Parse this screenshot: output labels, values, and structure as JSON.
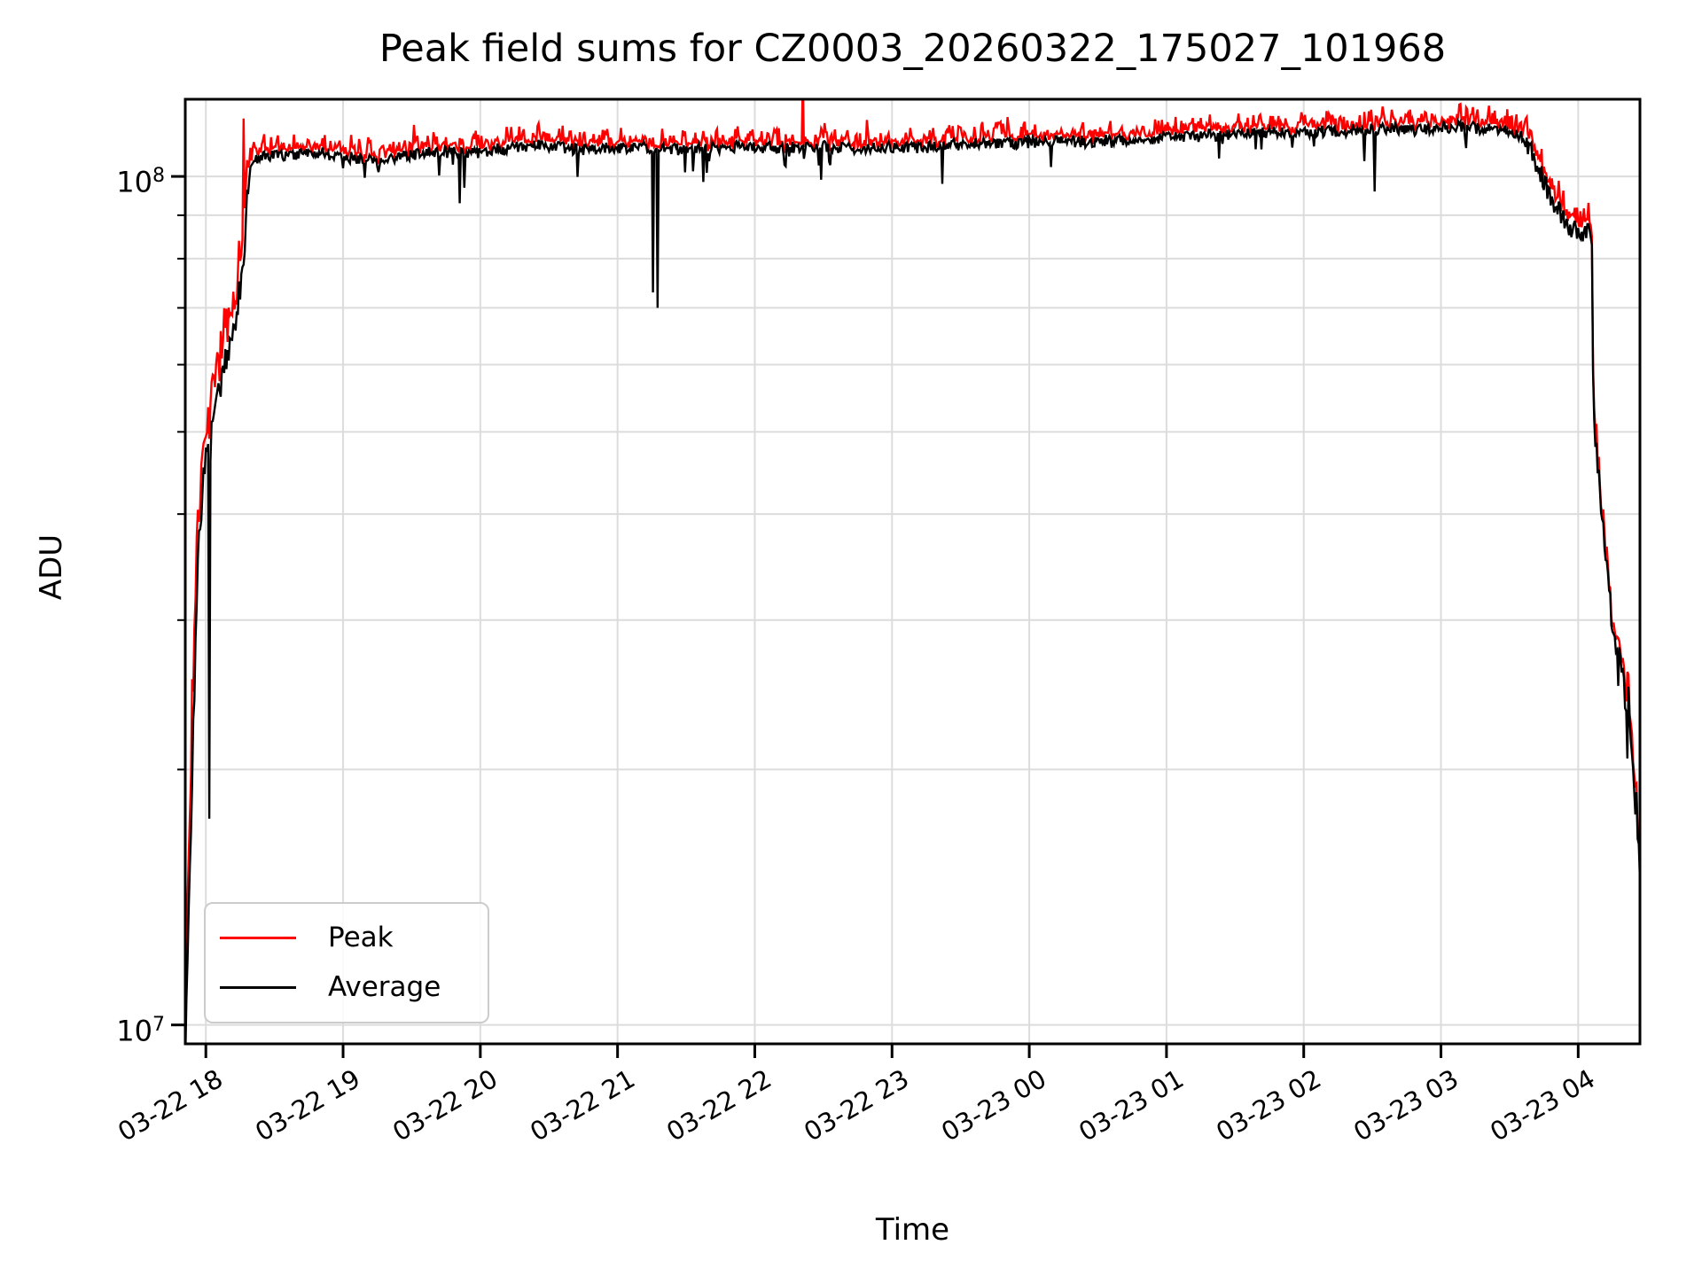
{
  "chart_data": {
    "type": "line",
    "title": "Peak field sums for CZ0003_20260322_175027_101968",
    "xlabel": "Time",
    "ylabel": "ADU",
    "yscale": "log",
    "ylim": [
      9500000.0,
      123300000.0
    ],
    "grid": true,
    "x_total_minutes": 636,
    "x_start_time": "03-22 17:51",
    "x_ticks": [
      {
        "minute": 9,
        "label": "03-22 18"
      },
      {
        "minute": 69,
        "label": "03-22 19"
      },
      {
        "minute": 129,
        "label": "03-22 20"
      },
      {
        "minute": 189,
        "label": "03-22 21"
      },
      {
        "minute": 249,
        "label": "03-22 22"
      },
      {
        "minute": 309,
        "label": "03-22 23"
      },
      {
        "minute": 369,
        "label": "03-23 00"
      },
      {
        "minute": 429,
        "label": "03-23 01"
      },
      {
        "minute": 489,
        "label": "03-23 02"
      },
      {
        "minute": 549,
        "label": "03-23 03"
      },
      {
        "minute": 609,
        "label": "03-23 04"
      }
    ],
    "y_major_ticks": [
      {
        "value": 10000000.0,
        "base": "10",
        "exp": "7"
      },
      {
        "value": 100000000.0,
        "base": "10",
        "exp": "8"
      }
    ],
    "y_minor_tick_values": [
      20000000.0,
      30000000.0,
      40000000.0,
      50000000.0,
      60000000.0,
      70000000.0,
      80000000.0,
      90000000.0
    ],
    "legend": {
      "position": "lower left",
      "entries": [
        {
          "label": "Peak",
          "color": "#ff0000"
        },
        {
          "label": "Average",
          "color": "#000000"
        }
      ]
    },
    "colors": {
      "peak": "#ff0000",
      "average": "#000000",
      "grid": "#dcdcdc",
      "frame": "#000000",
      "background": "#ffffff"
    },
    "series_names": [
      "Peak",
      "Average"
    ],
    "average_keypoints": [
      [
        0,
        9500000.0
      ],
      [
        0.5,
        10500000.0
      ],
      [
        1,
        12000000.0
      ],
      [
        2,
        15000000.0
      ],
      [
        3,
        19500000.0
      ],
      [
        4,
        25000000.0
      ],
      [
        5,
        31000000.0
      ],
      [
        6,
        37000000.0
      ],
      [
        7,
        41000000.0
      ],
      [
        8,
        44500000.0
      ],
      [
        9,
        46000000.0
      ],
      [
        10,
        47500000.0
      ],
      [
        11,
        48000000.0
      ],
      [
        12,
        51000000.0
      ],
      [
        13,
        53500000.0
      ],
      [
        14,
        55500000.0
      ],
      [
        15,
        57000000.0
      ],
      [
        16,
        58500000.0
      ],
      [
        17,
        60000000.0
      ],
      [
        18,
        61500000.0
      ],
      [
        19,
        62500000.0
      ],
      [
        20,
        63500000.0
      ],
      [
        21,
        65000000.0
      ],
      [
        22,
        68000000.0
      ],
      [
        23,
        71000000.0
      ],
      [
        24,
        74000000.0
      ],
      [
        25,
        76000000.0
      ],
      [
        26,
        81000000.0
      ],
      [
        27,
        93000000.0
      ],
      [
        28,
        100000000.0
      ],
      [
        29,
        103000000.0
      ],
      [
        30,
        104000000.0
      ],
      [
        32,
        105000000.0
      ],
      [
        35,
        105500000.0
      ],
      [
        45,
        106000000.0
      ],
      [
        60,
        106500000.0
      ],
      [
        75,
        105000000.0
      ],
      [
        85,
        104000000.0
      ],
      [
        95,
        105500000.0
      ],
      [
        110,
        107000000.0
      ],
      [
        125,
        106500000.0
      ],
      [
        140,
        108000000.0
      ],
      [
        155,
        109000000.0
      ],
      [
        170,
        107500000.0
      ],
      [
        185,
        108000000.0
      ],
      [
        200,
        108500000.0
      ],
      [
        215,
        107500000.0
      ],
      [
        230,
        108000000.0
      ],
      [
        245,
        108500000.0
      ],
      [
        260,
        108000000.0
      ],
      [
        275,
        108500000.0
      ],
      [
        290,
        108000000.0
      ],
      [
        305,
        108500000.0
      ],
      [
        320,
        108000000.0
      ],
      [
        335,
        109000000.0
      ],
      [
        350,
        109500000.0
      ],
      [
        365,
        109500000.0
      ],
      [
        380,
        110000000.0
      ],
      [
        395,
        110000000.0
      ],
      [
        410,
        110500000.0
      ],
      [
        425,
        111000000.0
      ],
      [
        440,
        111500000.0
      ],
      [
        455,
        112000000.0
      ],
      [
        470,
        112500000.0
      ],
      [
        485,
        113000000.0
      ],
      [
        500,
        113000000.0
      ],
      [
        515,
        113500000.0
      ],
      [
        530,
        114000000.0
      ],
      [
        545,
        114000000.0
      ],
      [
        555,
        114500000.0
      ],
      [
        565,
        114000000.0
      ],
      [
        572,
        113500000.0
      ],
      [
        578,
        113000000.0
      ],
      [
        583,
        112000000.0
      ],
      [
        587,
        109000000.0
      ],
      [
        590,
        105000000.0
      ],
      [
        593,
        100000000.0
      ],
      [
        596,
        96000000.0
      ],
      [
        599,
        93000000.0
      ],
      [
        601,
        91000000.0
      ],
      [
        603,
        89000000.0
      ],
      [
        605,
        87500000.0
      ],
      [
        607,
        86500000.0
      ],
      [
        609,
        86000000.0
      ],
      [
        612,
        86500000.0
      ],
      [
        614,
        86000000.0
      ],
      [
        615,
        85500000.0
      ],
      [
        615.5,
        60000000.0
      ],
      [
        616,
        51000000.0
      ],
      [
        617,
        47500000.0
      ],
      [
        618,
        44000000.0
      ],
      [
        619,
        41000000.0
      ],
      [
        620,
        38000000.0
      ],
      [
        621,
        35500000.0
      ],
      [
        622,
        33500000.0
      ],
      [
        623,
        31500000.0
      ],
      [
        624,
        29500000.0
      ],
      [
        625,
        28500000.0
      ],
      [
        626,
        27500000.0
      ],
      [
        626.5,
        25000000.0
      ],
      [
        627,
        28000000.0
      ],
      [
        627.5,
        27500000.0
      ],
      [
        628,
        26500000.0
      ],
      [
        629,
        25000000.0
      ],
      [
        630,
        23500000.0
      ],
      [
        630.5,
        21000000.0
      ],
      [
        631,
        24500000.0
      ],
      [
        631.5,
        23500000.0
      ],
      [
        632,
        22000000.0
      ],
      [
        633,
        19500000.0
      ],
      [
        634,
        18000000.0
      ],
      [
        634.5,
        19000000.0
      ],
      [
        635,
        17000000.0
      ],
      [
        635.5,
        16000000.0
      ],
      [
        636,
        15000000.0
      ]
    ],
    "events": {
      "average_dips": [
        [
          10.5,
          17500000.0
        ],
        [
          120,
          93000000.0
        ],
        [
          122,
          97000000.0
        ],
        [
          204.5,
          73000000.0
        ],
        [
          206.5,
          70000000.0
        ],
        [
          331,
          98000000.0
        ],
        [
          452,
          105000000.0
        ],
        [
          520,
          96000000.0
        ],
        [
          560,
          108000000.0
        ]
      ],
      "peak_spikes": [
        [
          25.3,
          117000000.0
        ],
        [
          100,
          115000000.0
        ],
        [
          270,
          131000000.0
        ],
        [
          503,
          117000000.0
        ],
        [
          578,
          120000000.0
        ],
        [
          580,
          118000000.0
        ]
      ]
    },
    "noise": {
      "seed": 7,
      "samples_per_minute": 2,
      "rise_end_min": 28,
      "tail_start_min": 585,
      "rise_avg_amp": 0.05,
      "plateau_avg_amp": 0.016,
      "tail_avg_amp": 0.03,
      "plateau_dip_chance": 0.055,
      "plateau_dip_amp": 0.08,
      "rise_peak_base": 0.02,
      "rise_peak_amp": 0.1,
      "plateau_peak_base": 0.006,
      "plateau_peak_amp": 0.045,
      "tail_peak_base": 0.012,
      "tail_peak_amp": 0.05
    }
  }
}
